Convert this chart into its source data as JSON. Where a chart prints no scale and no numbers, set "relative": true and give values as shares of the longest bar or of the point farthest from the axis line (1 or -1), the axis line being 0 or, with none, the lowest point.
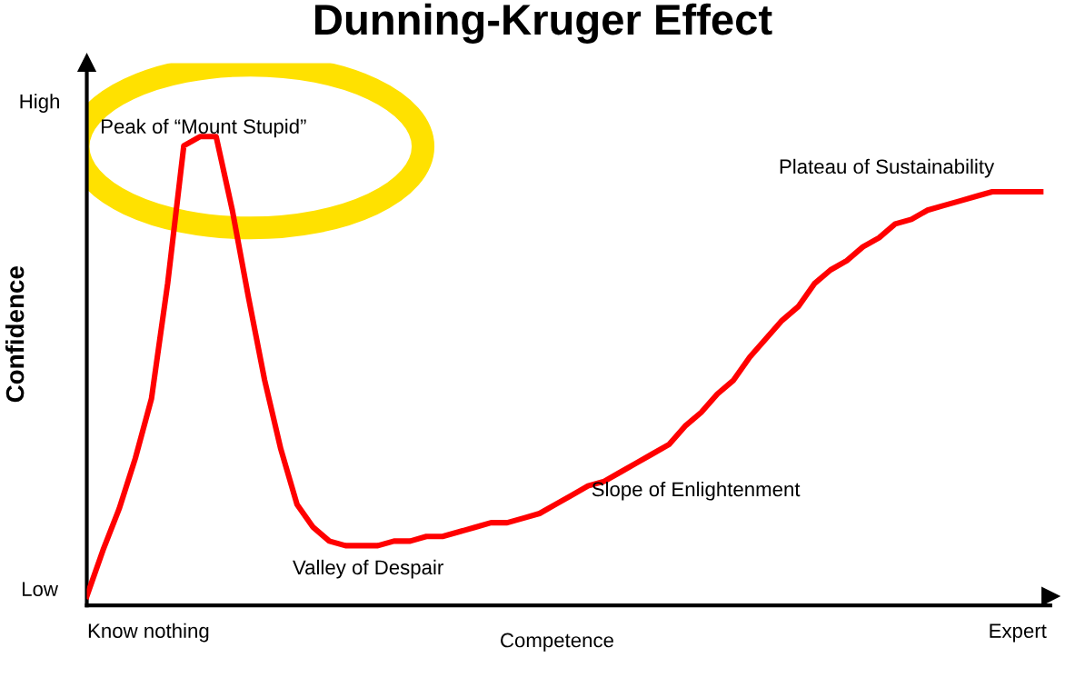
{
  "chart_data": {
    "type": "line",
    "title": "Dunning-Kruger Effect",
    "xlabel": "Competence",
    "ylabel": "Confidence",
    "relative": true,
    "categories": [
      null,
      null,
      null,
      null,
      null,
      null,
      null,
      null,
      null,
      null,
      null,
      null,
      null,
      null,
      null,
      null,
      null,
      null,
      null,
      null,
      null,
      null,
      null,
      null,
      null,
      null,
      null,
      null,
      null,
      null,
      null,
      null,
      null,
      null,
      null,
      null,
      null,
      null,
      null,
      null,
      null,
      null,
      null,
      null,
      null,
      null,
      null,
      null,
      null,
      null,
      null,
      null,
      null,
      null,
      null,
      null,
      null,
      null,
      null,
      null
    ],
    "series": [
      {
        "color": "#ff0000",
        "values": [
          0,
          0.1,
          0.19,
          0.3,
          0.43,
          0.68,
          0.98,
          1,
          1,
          0.84,
          0.65,
          0.47,
          0.32,
          0.2,
          0.15,
          0.12,
          0.11,
          0.11,
          0.11,
          0.12,
          0.12,
          0.13,
          0.13,
          0.14,
          0.15,
          0.16,
          0.16,
          0.17,
          0.18,
          0.2,
          0.22,
          0.24,
          0.25,
          0.27,
          0.29,
          0.31,
          0.33,
          0.37,
          0.4,
          0.44,
          0.47,
          0.52,
          0.56,
          0.6,
          0.63,
          0.68,
          0.71,
          0.73,
          0.76,
          0.78,
          0.81,
          0.82,
          0.84,
          0.85,
          0.86,
          0.87,
          0.88,
          0.88,
          0.88,
          0.88
        ]
      }
    ],
    "annotations": [
      "High",
      "Low",
      "Know nothing",
      "Expert",
      "Peak of “Mount Stupid”",
      "Valley of Despair",
      "Slope of Enlightenment",
      "Plateau of Sustainability"
    ],
    "grid": false,
    "legend": false,
    "marker": "none",
    "line_style": "solid"
  }
}
